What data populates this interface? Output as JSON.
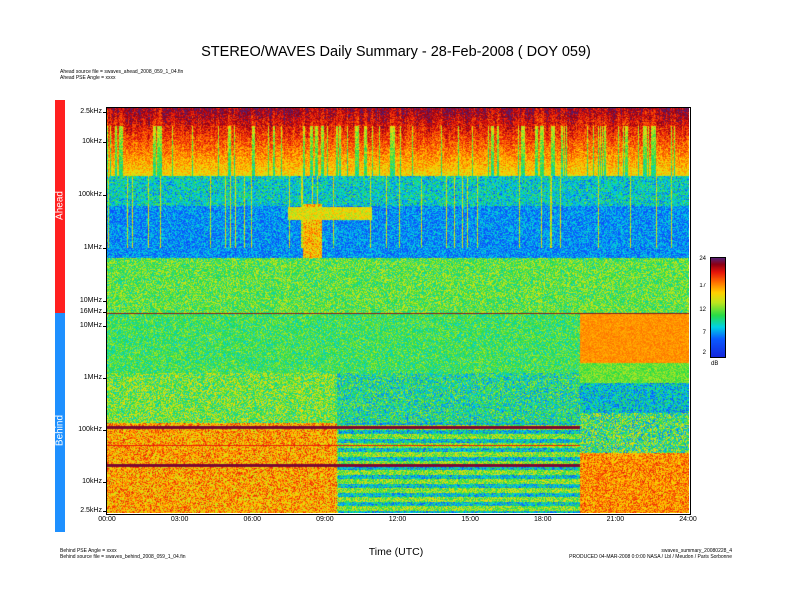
{
  "chart_data": {
    "type": "heatmap",
    "title": "STEREO/WAVES Daily Summary - 28-Feb-2008 ( DOY 059)",
    "xlabel": "Time (UTC)",
    "x_ticks": [
      "00:00",
      "03:00",
      "06:00",
      "09:00",
      "12:00",
      "15:00",
      "18:00",
      "21:00",
      "24:00"
    ],
    "xlim_hours": [
      0,
      24
    ],
    "panels": [
      {
        "name": "Ahead",
        "color": "#ff2020",
        "y_ticks": [
          "2.5kHz",
          "10kHz",
          "100kHz",
          "1MHz",
          "10MHz",
          "16MHz"
        ],
        "scale": "log"
      },
      {
        "name": "Behind",
        "color": "#1e90ff",
        "y_ticks": [
          "10MHz",
          "1MHz",
          "100kHz",
          "10kHz",
          "2.5kHz"
        ],
        "scale": "log"
      }
    ],
    "colorbar": {
      "ticks": [
        "24",
        "17",
        "12",
        "7",
        "2"
      ],
      "unit": "dB",
      "range": [
        2,
        24
      ]
    }
  },
  "header": {
    "ahead_file": "Ahead source file = swaves_ahead_2008_059_1_04.fin",
    "ahead_angle": "Ahead PSE Angle = xxxx"
  },
  "footer": {
    "behind_angle": "Behind PSE Angle = xxxx",
    "behind_file": "Behind source file = swaves_behind_2008_059_1_04.fin",
    "summary_file": "swaves_summary_20080228_4",
    "produced": "PRODUCED 04-MAR-2008 0:0:00 NASA / Lbl / Meudon / Paris Sorbonne"
  }
}
